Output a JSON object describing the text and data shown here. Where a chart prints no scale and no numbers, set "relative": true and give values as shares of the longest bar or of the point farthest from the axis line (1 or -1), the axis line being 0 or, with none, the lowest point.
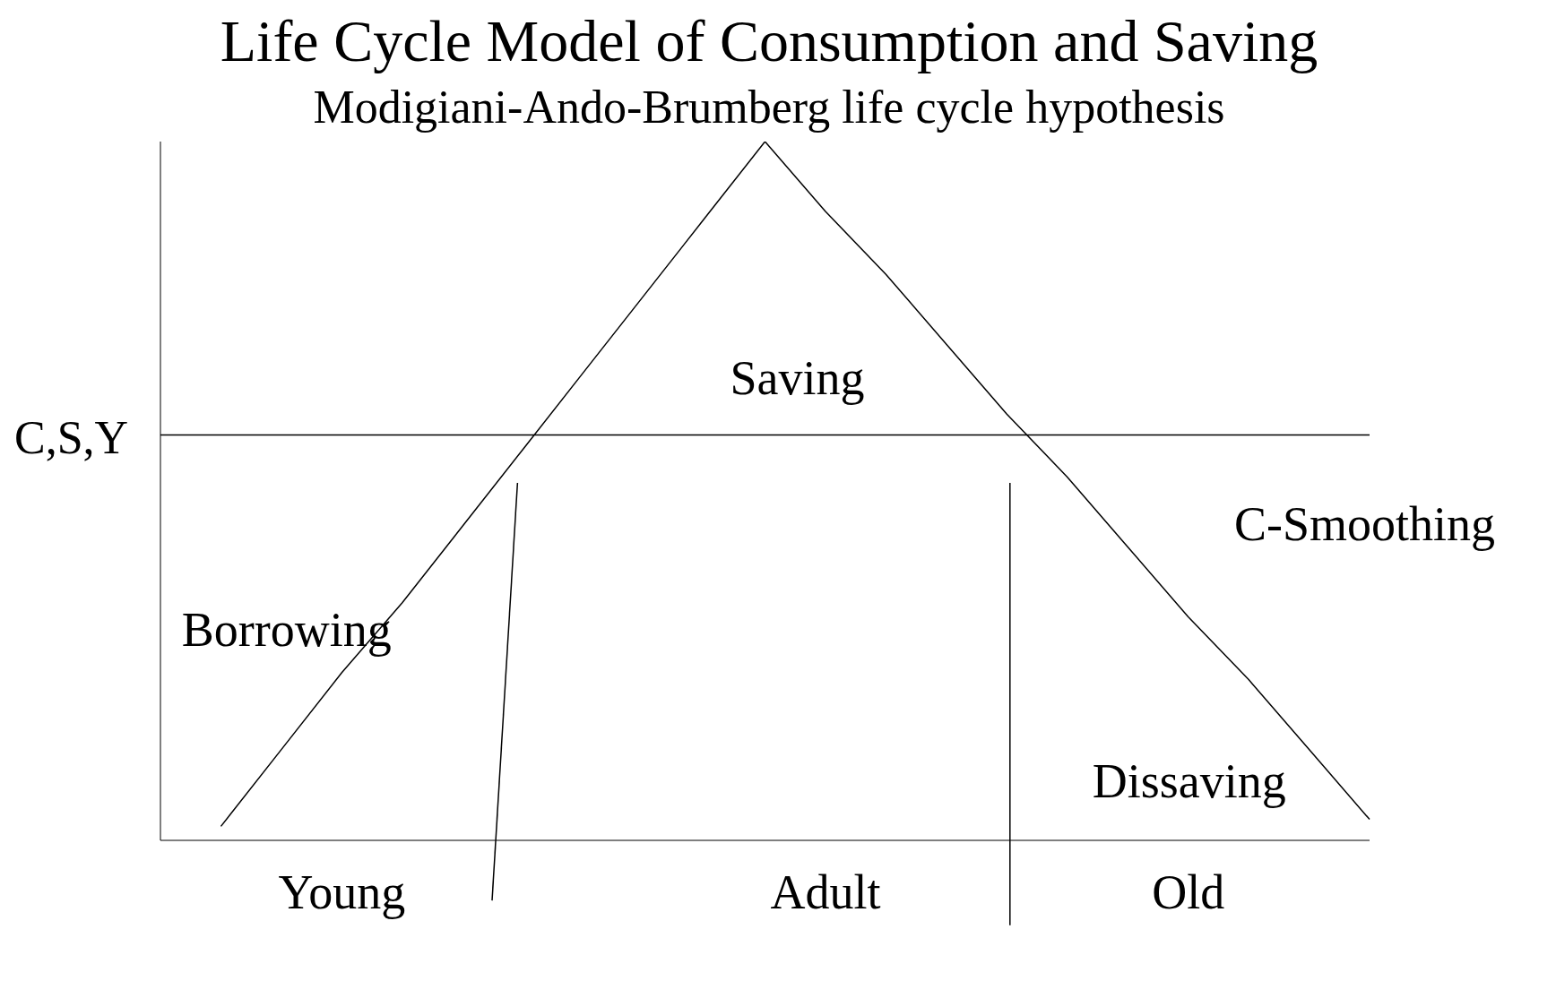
{
  "chart_data": {
    "type": "line",
    "title": "Life Cycle Model of Consumption and Saving",
    "subtitle": "Modigiani-Ando-Brumberg life cycle hypothesis",
    "ylabel": "C,S,Y",
    "relative": true,
    "marker": "none",
    "line_style": "solid",
    "categories": [
      null,
      null,
      null,
      "Young",
      null,
      null,
      null,
      null,
      null,
      null,
      null,
      "Adult",
      null,
      null,
      null,
      null,
      null,
      "Old",
      null,
      null,
      null
    ],
    "series": [
      {
        "color": "#000000",
        "values": [
          null,
          0.02,
          0.13,
          0.24,
          0.34,
          0.45,
          0.56,
          0.67,
          0.78,
          0.89,
          1.0,
          0.9,
          0.81,
          0.71,
          0.61,
          0.52,
          0.42,
          0.32,
          0.23,
          0.13,
          0.03
        ]
      },
      {
        "color": "#000000",
        "values": [
          0.58,
          0.58,
          0.58,
          0.58,
          0.58,
          0.58,
          0.58,
          0.58,
          0.58,
          0.58,
          0.58,
          0.58,
          0.58,
          0.58,
          0.58,
          0.58,
          0.58,
          0.58,
          0.58,
          0.58,
          0.58
        ]
      }
    ],
    "annotations": [
      "Saving",
      "Borrowing",
      "Dissaving",
      "C-Smoothing"
    ]
  }
}
